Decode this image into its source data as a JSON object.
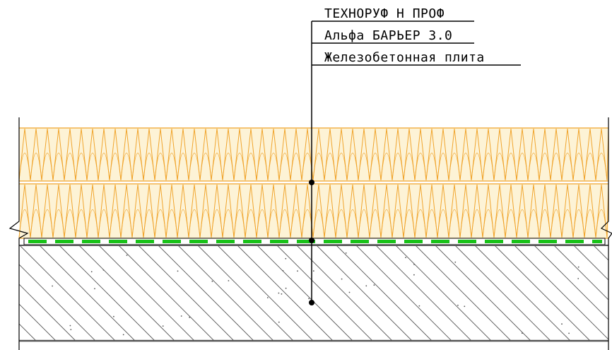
{
  "callout": {
    "labels": [
      "ТЕХНОРУФ Н ПРОФ",
      "Альфа БАРЬЕР 3.0",
      "Железобетонная плита"
    ]
  },
  "layers": [
    {
      "key": "insulation-top",
      "material": "mineral-wool-insulation",
      "color": "#f0a42c",
      "fill": "#fdf3d6"
    },
    {
      "key": "insulation-bottom",
      "material": "mineral-wool-insulation",
      "color": "#f0a42c",
      "fill": "#fdf3d6"
    },
    {
      "key": "vapor-barrier",
      "material": "vapor-barrier-membrane",
      "color": "#19c219"
    },
    {
      "key": "concrete-slab",
      "material": "reinforced-concrete",
      "color": "#555555"
    }
  ],
  "colors": {
    "line": "#000000",
    "hatch": "#555555",
    "insulation": "#f0a42c",
    "membrane": "#19c219"
  }
}
